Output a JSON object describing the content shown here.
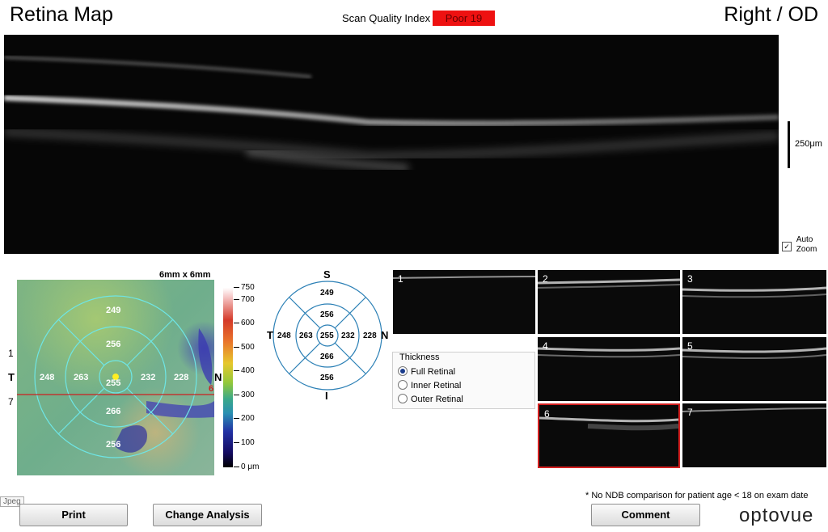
{
  "header": {
    "title": "Retina Map",
    "eye": "Right / OD",
    "sqi_label": "Scan Quality Index",
    "sqi_value": "Poor  19",
    "sqi_color": "#ee1111"
  },
  "bscan": {
    "scale_label": "250μm",
    "auto_zoom_line1": "Auto",
    "auto_zoom_line2": "Zoom",
    "auto_zoom_checked": true
  },
  "thickness_map": {
    "title": "6mm x 6mm",
    "labels": {
      "superior": "249",
      "superior_inner": "256",
      "temporal": "248",
      "temporal_inner": "263",
      "center": "255",
      "nasal_inner": "232",
      "nasal": "228",
      "inferior_inner": "266",
      "inferior": "256"
    },
    "side_T": "T",
    "side_N": "N",
    "line_left_top": "1",
    "line_left_bottom": "7",
    "line_right": "6",
    "colorbar_ticks": [
      "750",
      "700",
      "600",
      "500",
      "400",
      "300",
      "200",
      "100",
      "0 μm"
    ]
  },
  "sector_chart": {
    "S": "S",
    "I": "I",
    "T": "T",
    "N": "N",
    "values": {
      "superior": "249",
      "superior_inner": "256",
      "temporal": "248",
      "temporal_inner": "263",
      "center": "255",
      "nasal_inner": "232",
      "nasal": "228",
      "inferior_inner": "266",
      "inferior": "256"
    }
  },
  "thumbnails": [
    "1",
    "2",
    "3",
    "4",
    "5",
    "6",
    "7"
  ],
  "selected_thumbnail": "6",
  "thickness_panel": {
    "title": "Thickness",
    "options": [
      "Full Retinal",
      "Inner Retinal",
      "Outer Retinal"
    ],
    "selected": "Full Retinal"
  },
  "footer": {
    "print": "Print",
    "change_analysis": "Change Analysis",
    "comment": "Comment",
    "note": "* No NDB comparison for patient age < 18 on exam date",
    "logo": "optovue",
    "jpeg_tag": "Jpeg"
  }
}
